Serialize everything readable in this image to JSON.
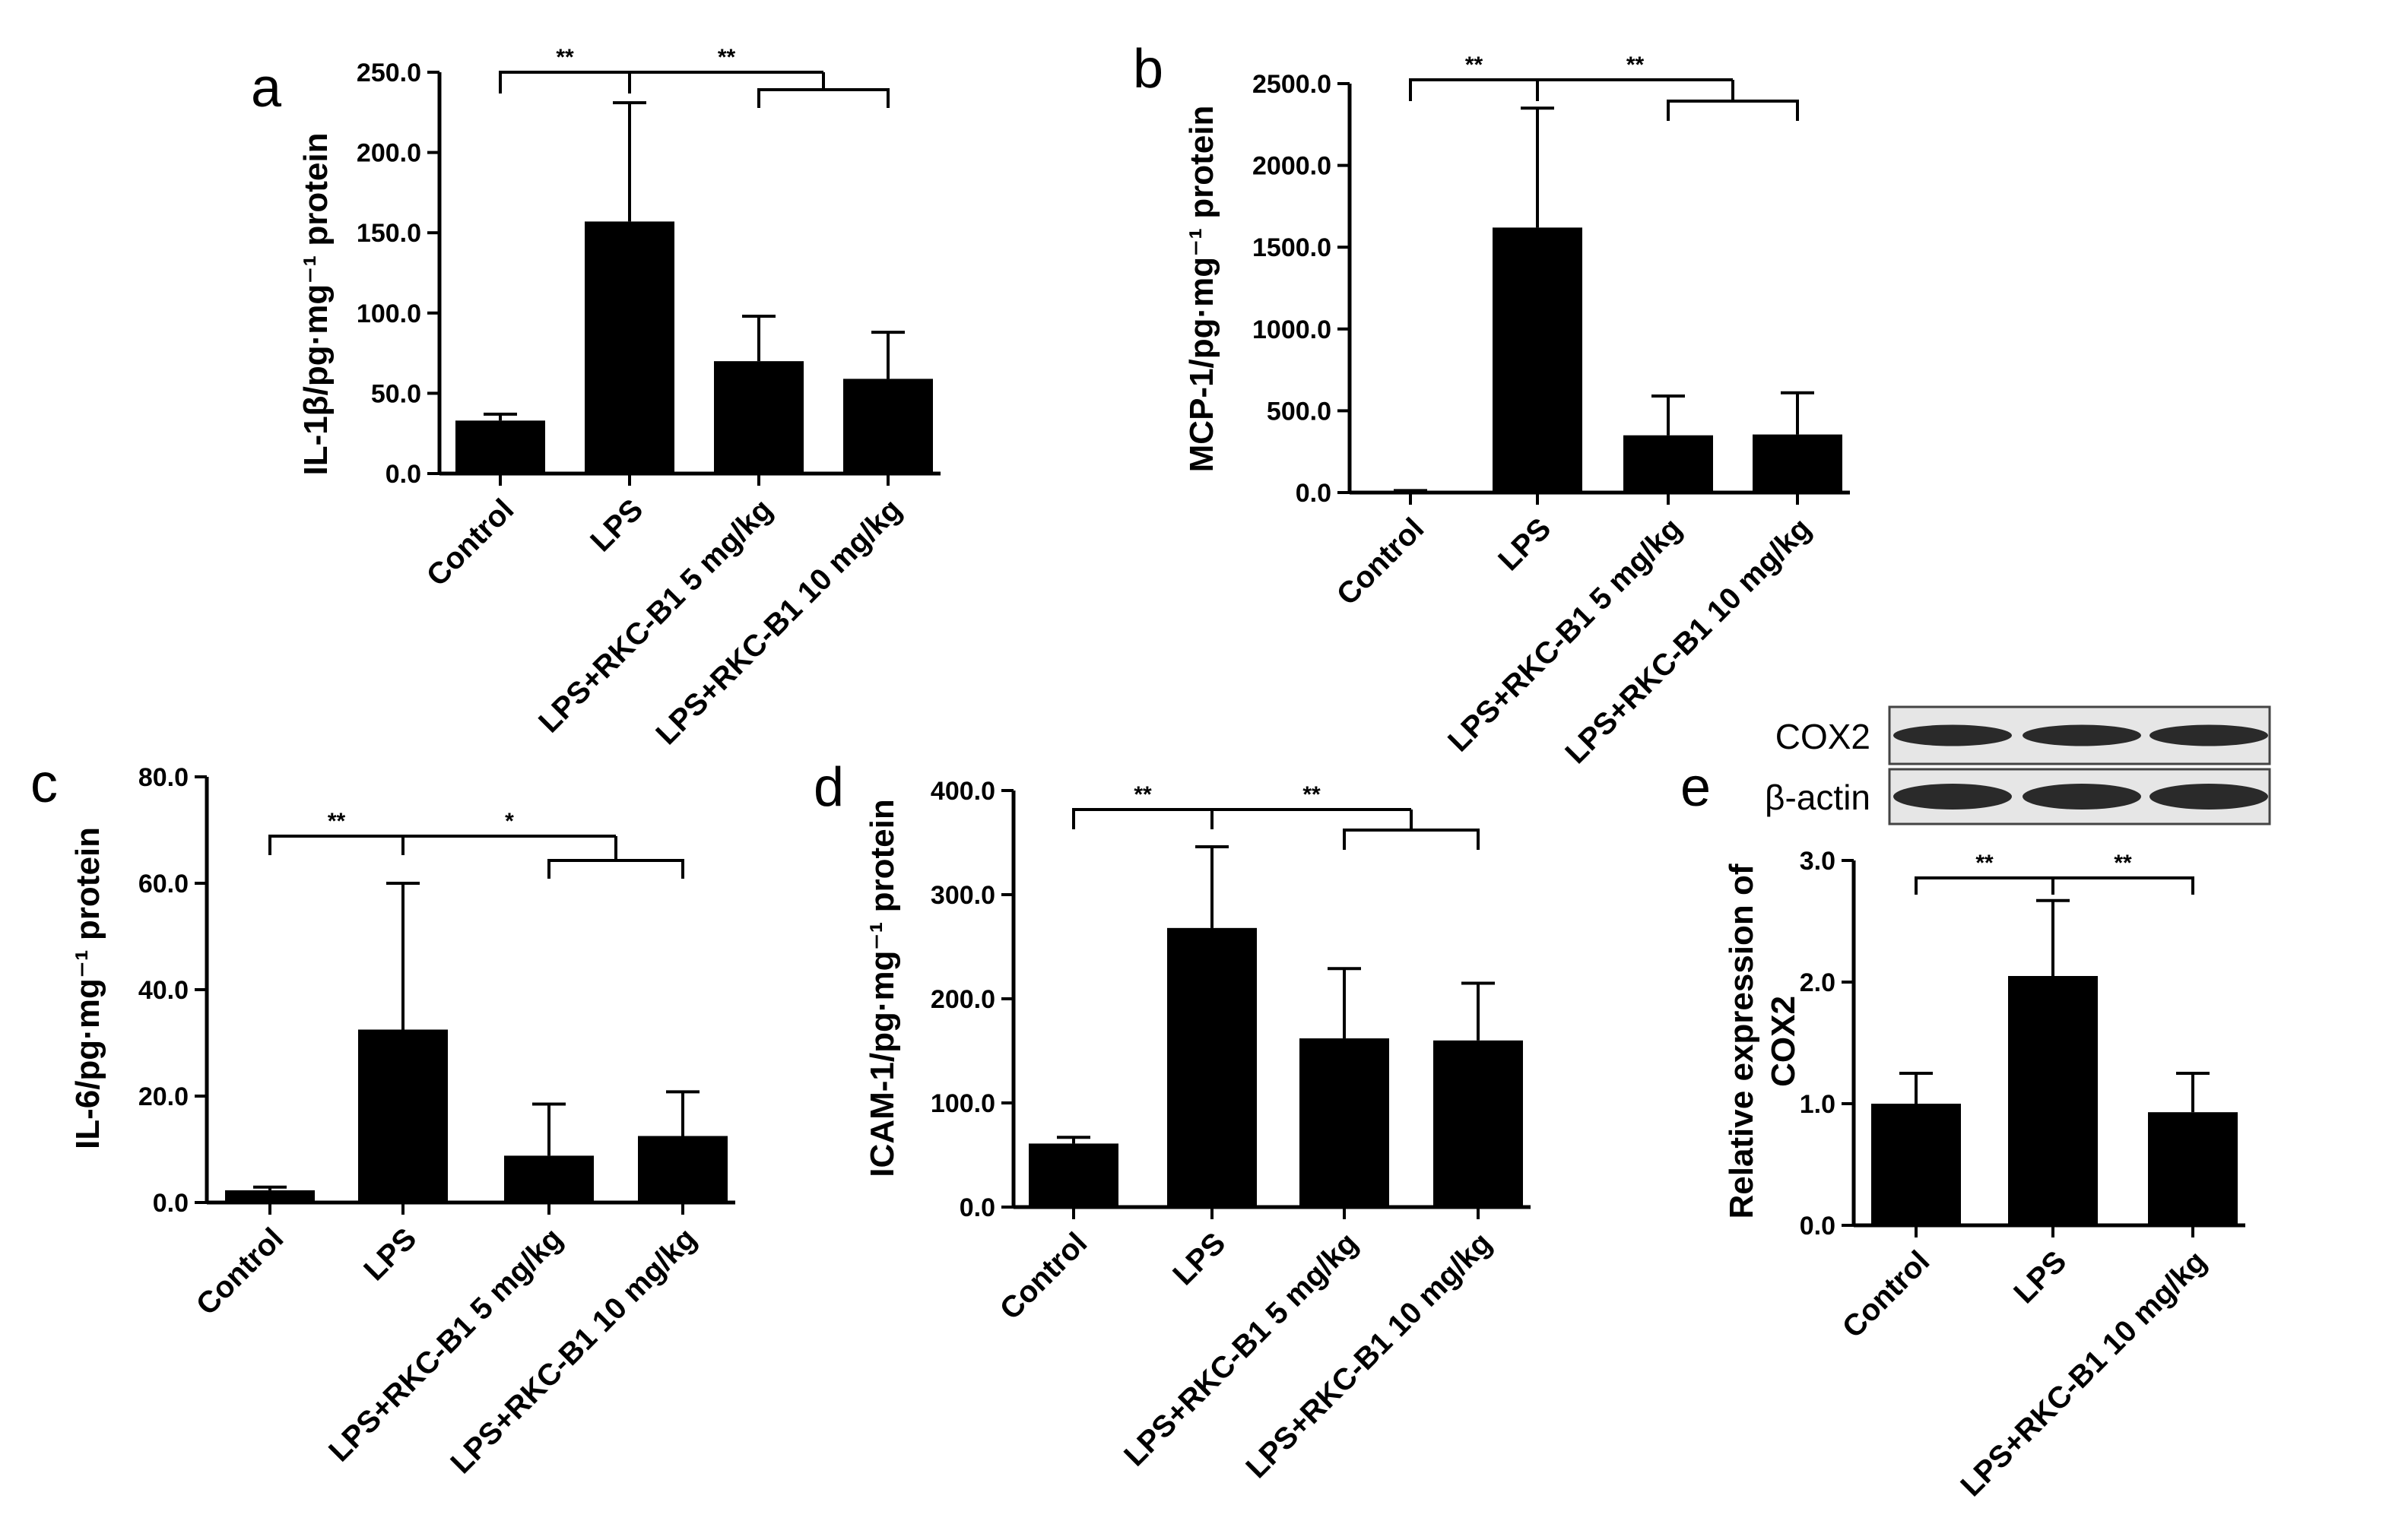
{
  "colors": {
    "bar": "#000000",
    "axis": "#000000",
    "blot_bg": "#e6e6e6",
    "band": "#1a1a1a"
  },
  "chart_data": [
    {
      "id": "a",
      "panel": "a",
      "type": "bar",
      "ylabel": "IL-1β/pg·mg⁻¹ protein",
      "categories": [
        "Control",
        "LPS",
        "LPS+RKC-B1 5 mg/kg",
        "LPS+RKC-B1 10 mg/kg"
      ],
      "values": [
        33,
        157,
        70,
        59
      ],
      "errors": [
        4,
        74,
        28,
        29
      ],
      "ylim": [
        0,
        250
      ],
      "yticks": [
        0,
        50,
        100,
        150,
        200,
        250
      ],
      "tick_labels": [
        "0.0",
        "50.0",
        "100.0",
        "150.0",
        "200.0",
        "250.0"
      ],
      "significance": [
        {
          "label": "**",
          "from": 0,
          "to": 1
        },
        {
          "label": "**",
          "from": 1,
          "to": [
            2,
            3
          ]
        }
      ]
    },
    {
      "id": "b",
      "panel": "b",
      "type": "bar",
      "ylabel": "MCP-1/pg·mg⁻¹ protein",
      "categories": [
        "Control",
        "LPS",
        "LPS+RKC-B1 5 mg/kg",
        "LPS+RKC-B1 10 mg/kg"
      ],
      "values": [
        8,
        1620,
        350,
        355
      ],
      "errors": [
        4,
        730,
        240,
        255
      ],
      "ylim": [
        0,
        2500
      ],
      "yticks": [
        0,
        500,
        1000,
        1500,
        2000,
        2500
      ],
      "tick_labels": [
        "0.0",
        "500.0",
        "1000.0",
        "1500.0",
        "2000.0",
        "2500.0"
      ],
      "significance": [
        {
          "label": "**",
          "from": 0,
          "to": 1
        },
        {
          "label": "**",
          "from": 1,
          "to": [
            2,
            3
          ]
        }
      ]
    },
    {
      "id": "c",
      "panel": "c",
      "type": "bar",
      "ylabel": "IL-6/pg·mg⁻¹ protein",
      "categories": [
        "Control",
        "LPS",
        "LPS+RKC-B1 5 mg/kg",
        "LPS+RKC-B1 10 mg/kg"
      ],
      "values": [
        2.3,
        32.5,
        8.8,
        12.5
      ],
      "errors": [
        0.6,
        27.5,
        9.7,
        8.3
      ],
      "ylim": [
        0,
        80
      ],
      "yticks": [
        0,
        20,
        40,
        60,
        80
      ],
      "tick_labels": [
        "0.0",
        "20.0",
        "40.0",
        "60.0",
        "80.0"
      ],
      "significance": [
        {
          "label": "**",
          "from": 0,
          "to": 1
        },
        {
          "label": "*",
          "from": 1,
          "to": [
            2,
            3
          ]
        }
      ]
    },
    {
      "id": "d",
      "panel": "d",
      "type": "bar",
      "ylabel": "ICAM-1/pg·mg⁻¹ protein",
      "categories": [
        "Control",
        "LPS",
        "LPS+RKC-B1 5 mg/kg",
        "LPS+RKC-B1 10 mg/kg"
      ],
      "values": [
        61,
        268,
        162,
        160
      ],
      "errors": [
        6,
        78,
        67,
        55
      ],
      "ylim": [
        0,
        400
      ],
      "yticks": [
        0,
        100,
        200,
        300,
        400
      ],
      "tick_labels": [
        "0.0",
        "100.0",
        "200.0",
        "300.0",
        "400.0"
      ],
      "significance": [
        {
          "label": "**",
          "from": 0,
          "to": 1
        },
        {
          "label": "**",
          "from": 1,
          "to": [
            2,
            3
          ]
        }
      ]
    },
    {
      "id": "e",
      "panel": "e",
      "type": "bar",
      "ylabel_lines": [
        "Relative expression of",
        "COX2"
      ],
      "categories": [
        "Control",
        "LPS",
        "LPS+RKC-B1 10 mg/kg"
      ],
      "values": [
        1.0,
        2.05,
        0.93
      ],
      "errors": [
        0.25,
        0.62,
        0.32
      ],
      "ylim": [
        0,
        3
      ],
      "yticks": [
        0,
        1,
        2,
        3
      ],
      "tick_labels": [
        "0.0",
        "1.0",
        "2.0",
        "3.0"
      ],
      "significance": [
        {
          "label": "**",
          "from": 0,
          "to": 1
        },
        {
          "label": "**",
          "from": 1,
          "to": 2
        }
      ],
      "blot": {
        "rows": [
          "COX2",
          "β-actin"
        ],
        "lanes": 3
      }
    }
  ]
}
